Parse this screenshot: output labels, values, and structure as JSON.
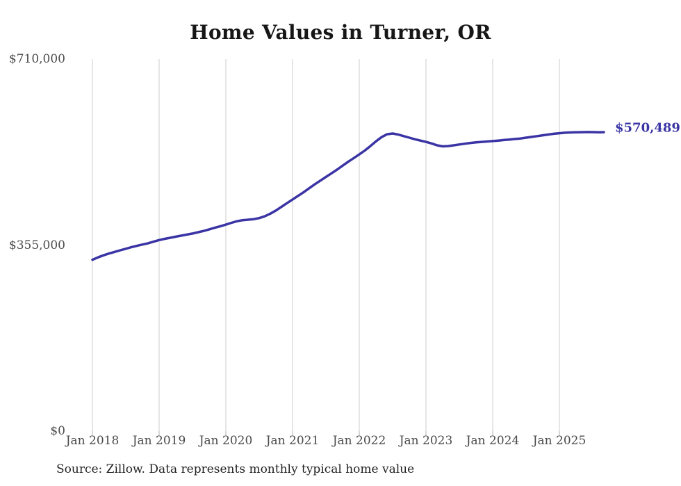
{
  "chart": {
    "title": "Home Values in Turner, OR",
    "end_label": "$570,489",
    "source_note": "Source: Zillow. Data represents monthly typical home value",
    "colors": {
      "line": "#3a34a4",
      "end_label_text": "#3a34a4",
      "grid": "#cccccc",
      "axis_tick": "#b0b0b0",
      "tick_text": "#4a4a4a",
      "title_text": "#161616",
      "source_text": "#222222",
      "background": "#ffffff"
    }
  },
  "chart_data": {
    "type": "line",
    "title": "Home Values in Turner, OR",
    "unit": "USD",
    "frequency": "monthly",
    "start_month": "Jan 2018",
    "end_month": "Sep 2025",
    "latest_value": 570489,
    "x_tick_labels": [
      "Jan 2018",
      "Jan 2019",
      "Jan 2020",
      "Jan 2021",
      "Jan 2022",
      "Jan 2023",
      "Jan 2024",
      "Jan 2025"
    ],
    "y_tick_labels": [
      "$0",
      "$355,000",
      "$710,000"
    ],
    "y_tick_values": [
      0,
      355000,
      710000
    ],
    "ylim": [
      0,
      710000
    ],
    "grid": "vertical-only",
    "legend": "none",
    "values": [
      327000,
      331500,
      335500,
      339000,
      342000,
      345000,
      348000,
      351000,
      353500,
      356000,
      358500,
      361500,
      364500,
      367000,
      369000,
      371000,
      373000,
      375000,
      377000,
      379500,
      382000,
      385000,
      388000,
      391000,
      394000,
      397500,
      400500,
      402500,
      403500,
      404500,
      406500,
      410000,
      415000,
      421000,
      428000,
      435000,
      442000,
      449000,
      456000,
      463500,
      471000,
      478000,
      485000,
      492000,
      499000,
      506500,
      514000,
      521000,
      528000,
      535500,
      544000,
      553000,
      561000,
      566500,
      568000,
      566000,
      563000,
      560000,
      557000,
      554500,
      552000,
      549000,
      545500,
      543500,
      544000,
      545500,
      547000,
      548500,
      550000,
      551000,
      552000,
      552800,
      553500,
      554500,
      555500,
      556500,
      557500,
      558500,
      560000,
      561500,
      563000,
      564500,
      566000,
      567500,
      568500,
      569500,
      570000,
      570200,
      570500,
      570800,
      570600,
      570400,
      570489
    ]
  }
}
